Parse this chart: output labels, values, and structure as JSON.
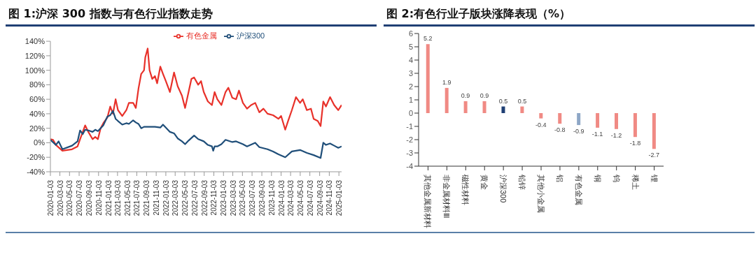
{
  "chart_data": [
    {
      "type": "line",
      "title": "图 1:沪深 300 指数与有色行业指数走势",
      "legend": "top",
      "grid": false,
      "xlim": [
        "2020-01-03",
        "2025-01-20"
      ],
      "xticks": [
        "2020-01-03",
        "2020-03-03",
        "2020-05-03",
        "2020-07-03",
        "2020-09-03",
        "2020-11-03",
        "2021-01-03",
        "2021-03-03",
        "2021-05-03",
        "2021-07-03",
        "2021-09-03",
        "2021-11-03",
        "2022-01-03",
        "2022-03-03",
        "2022-05-03",
        "2022-07-03",
        "2022-09-03",
        "2022-11-03",
        "2023-01-03",
        "2023-03-03",
        "2023-05-03",
        "2023-07-03",
        "2023-09-03",
        "2023-11-03",
        "2024-01-03",
        "2024-03-03",
        "2024-05-03",
        "2024-07-03",
        "2024-09-03",
        "2024-11-03",
        "2025-01-03"
      ],
      "ylim": [
        -40,
        140
      ],
      "yticks": [
        {
          "value": -40,
          "label": "-40%"
        },
        {
          "value": -20,
          "label": "-20%"
        },
        {
          "value": 0,
          "label": "0%"
        },
        {
          "value": 20,
          "label": "20%"
        },
        {
          "value": 40,
          "label": "40%"
        },
        {
          "value": 60,
          "label": "60%"
        },
        {
          "value": 80,
          "label": "80%"
        },
        {
          "value": 100,
          "label": "100%"
        },
        {
          "value": 120,
          "label": "120%"
        },
        {
          "value": 140,
          "label": "140%"
        }
      ],
      "series": [
        {
          "name": "有色金属",
          "color": "#e8312a",
          "x": [
            "2020-01-03",
            "2020-01-20",
            "2020-02-07",
            "2020-03-19",
            "2020-05-19",
            "2020-06-23",
            "2020-07-09",
            "2020-07-26",
            "2020-08-10",
            "2020-08-30",
            "2020-09-26",
            "2020-10-13",
            "2020-10-30",
            "2020-11-16",
            "2020-12-03",
            "2020-12-29",
            "2021-01-16",
            "2021-02-02",
            "2021-02-19",
            "2021-03-06",
            "2021-04-02",
            "2021-04-28",
            "2021-05-14",
            "2021-06-10",
            "2021-06-27",
            "2021-07-14",
            "2021-07-31",
            "2021-08-18",
            "2021-08-26",
            "2021-09-10",
            "2021-09-22",
            "2021-10-09",
            "2021-10-26",
            "2021-11-09",
            "2021-11-29",
            "2021-12-16",
            "2022-01-03",
            "2022-01-29",
            "2022-02-24",
            "2022-03-19",
            "2022-04-15",
            "2022-05-05",
            "2022-05-27",
            "2022-06-14",
            "2022-07-01",
            "2022-07-27",
            "2022-08-14",
            "2022-08-31",
            "2022-09-26",
            "2022-10-22",
            "2022-11-08",
            "2022-11-25",
            "2022-12-21",
            "2023-01-16",
            "2023-02-03",
            "2023-02-28",
            "2023-03-24",
            "2023-04-11",
            "2023-05-06",
            "2023-06-01",
            "2023-06-27",
            "2023-07-23",
            "2023-08-18",
            "2023-09-13",
            "2023-10-09",
            "2023-11-13",
            "2023-12-17",
            "2024-01-03",
            "2024-01-29",
            "2024-02-16",
            "2024-03-11",
            "2024-04-06",
            "2024-05-02",
            "2024-05-19",
            "2024-06-14",
            "2024-07-10",
            "2024-07-27",
            "2024-08-22",
            "2024-09-09",
            "2024-09-26",
            "2024-10-13",
            "2024-11-08",
            "2024-12-04",
            "2024-12-30",
            "2025-01-20"
          ],
          "values": [
            5,
            4,
            -3,
            -11,
            -9,
            -5,
            5,
            15,
            24,
            15,
            5,
            8,
            5,
            20,
            27,
            35,
            50,
            40,
            60,
            45,
            37,
            45,
            55,
            55,
            48,
            75,
            95,
            100,
            118,
            130,
            100,
            88,
            92,
            82,
            105,
            95,
            85,
            70,
            97,
            78,
            65,
            48,
            70,
            88,
            90,
            80,
            85,
            70,
            57,
            52,
            70,
            60,
            52,
            70,
            76,
            62,
            60,
            72,
            55,
            47,
            52,
            55,
            42,
            47,
            40,
            38,
            33,
            37,
            18,
            30,
            45,
            63,
            55,
            60,
            45,
            47,
            33,
            30,
            23,
            57,
            50,
            63,
            52,
            45,
            52
          ]
        },
        {
          "name": "沪深300",
          "color": "#1f4e79",
          "x": [
            "2020-01-03",
            "2020-02-07",
            "2020-02-24",
            "2020-03-19",
            "2020-05-19",
            "2020-06-23",
            "2020-07-09",
            "2020-07-26",
            "2020-08-10",
            "2020-08-30",
            "2020-09-26",
            "2020-10-13",
            "2020-10-30",
            "2020-11-16",
            "2020-12-03",
            "2020-12-29",
            "2021-01-16",
            "2021-02-02",
            "2021-02-19",
            "2021-03-06",
            "2021-04-02",
            "2021-04-28",
            "2021-05-14",
            "2021-06-10",
            "2021-06-27",
            "2021-07-14",
            "2021-07-31",
            "2021-08-18",
            "2021-09-22",
            "2021-10-26",
            "2021-11-29",
            "2021-12-16",
            "2022-01-03",
            "2022-01-29",
            "2022-02-24",
            "2022-03-19",
            "2022-04-15",
            "2022-05-05",
            "2022-05-27",
            "2022-07-01",
            "2022-07-27",
            "2022-08-31",
            "2022-09-26",
            "2022-10-22",
            "2022-10-30",
            "2022-11-08",
            "2022-11-25",
            "2022-12-21",
            "2023-01-16",
            "2023-02-28",
            "2023-03-24",
            "2023-05-06",
            "2023-06-01",
            "2023-07-23",
            "2023-08-18",
            "2023-10-09",
            "2023-11-13",
            "2023-12-17",
            "2024-01-29",
            "2024-03-11",
            "2024-05-02",
            "2024-06-14",
            "2024-07-27",
            "2024-09-09",
            "2024-09-26",
            "2024-10-13",
            "2024-11-08",
            "2024-12-04",
            "2024-12-30",
            "2025-01-20"
          ],
          "values": [
            4,
            -3,
            2,
            -9,
            -4,
            2,
            17,
            12,
            18,
            17,
            15,
            18,
            16,
            20,
            24,
            36,
            38,
            44,
            33,
            30,
            25,
            27,
            26,
            31,
            28,
            26,
            20,
            22,
            22,
            22,
            21,
            25,
            21,
            15,
            13,
            6,
            2,
            -2,
            3,
            10,
            5,
            2,
            -3,
            -5,
            -11,
            -5,
            -5,
            -2,
            4,
            1,
            2,
            -2,
            -5,
            0,
            -6,
            -9,
            -12,
            -16,
            -20,
            -12,
            -10,
            -14,
            -17,
            -21,
            0,
            -3,
            -1,
            -4,
            -7,
            -5
          ]
        }
      ]
    },
    {
      "type": "bar",
      "title": "图 2:有色行业子版块涨降表现（%）",
      "grid": false,
      "data_labels": true,
      "categories": [
        "其他金属新材料",
        "非金属材料Ⅲ",
        "磁性材料",
        "黄金",
        "沪深300",
        "铅锌",
        "其他小金属",
        "铝",
        "有色金属",
        "铜",
        "钨",
        "稀土",
        "锂"
      ],
      "values": [
        5.2,
        1.9,
        0.9,
        0.9,
        0.5,
        0.5,
        -0.4,
        -0.8,
        -0.9,
        -1.1,
        -1.2,
        -1.8,
        -2.7
      ],
      "colors": [
        "#f08a84",
        "#f08a84",
        "#f08a84",
        "#f08a84",
        "#1f3f74",
        "#f08a84",
        "#f08a84",
        "#f08a84",
        "#8ea7c6",
        "#f08a84",
        "#f08a84",
        "#f08a84",
        "#f08a84"
      ],
      "ylim": [
        -4,
        6
      ],
      "yticks": [
        -4,
        -3,
        -2,
        -1,
        0,
        1,
        2,
        3,
        4,
        5,
        6
      ]
    }
  ]
}
